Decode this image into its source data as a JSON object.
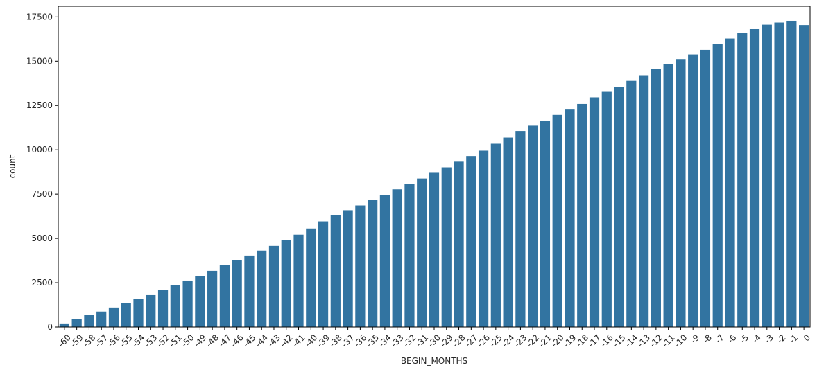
{
  "chart_data": {
    "type": "bar",
    "xlabel": "BEGIN_MONTHS",
    "ylabel": "count",
    "ylim": [
      0,
      18100
    ],
    "yticks": [
      0,
      2500,
      5000,
      7500,
      10000,
      12500,
      15000,
      17500
    ],
    "bar_color": "#3274a1",
    "grid": false,
    "categories": [
      "-60",
      "-59",
      "-58",
      "-57",
      "-56",
      "-55",
      "-54",
      "-53",
      "-52",
      "-51",
      "-50",
      "-49",
      "-48",
      "-47",
      "-46",
      "-45",
      "-44",
      "-43",
      "-42",
      "-41",
      "-40",
      "-39",
      "-38",
      "-37",
      "-36",
      "-35",
      "-34",
      "-33",
      "-32",
      "-31",
      "-30",
      "-29",
      "-28",
      "-27",
      "-26",
      "-25",
      "-24",
      "-23",
      "-22",
      "-21",
      "-20",
      "-19",
      "-18",
      "-17",
      "-16",
      "-15",
      "-14",
      "-13",
      "-12",
      "-11",
      "-10",
      "-9",
      "-8",
      "-7",
      "-6",
      "-5",
      "-4",
      "-3",
      "-2",
      "-1",
      "0"
    ],
    "values": [
      200,
      430,
      680,
      870,
      1100,
      1330,
      1570,
      1800,
      2100,
      2380,
      2620,
      2880,
      3170,
      3480,
      3760,
      4030,
      4310,
      4580,
      4890,
      5210,
      5560,
      5960,
      6300,
      6590,
      6860,
      7190,
      7460,
      7770,
      8070,
      8380,
      8700,
      9010,
      9330,
      9650,
      9950,
      10340,
      10690,
      11060,
      11360,
      11650,
      11970,
      12270,
      12590,
      12960,
      13270,
      13560,
      13890,
      14210,
      14570,
      14830,
      15120,
      15380,
      15640,
      15970,
      16280,
      16580,
      16810,
      17060,
      17180,
      17280,
      17040
    ]
  }
}
